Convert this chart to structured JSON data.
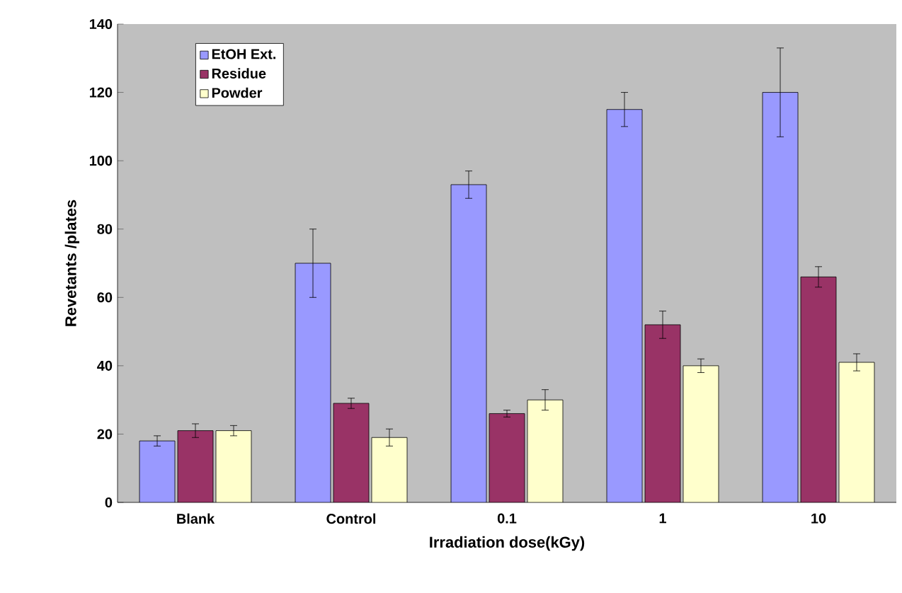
{
  "chart_data": {
    "type": "bar",
    "xlabel": "Irradiation dose(kGy)",
    "ylabel": "Revetants /plates",
    "categories": [
      "Blank",
      "Control",
      "0.1",
      "1",
      "10"
    ],
    "series": [
      {
        "name": "EtOH Ext.",
        "color": "#9999ff",
        "values": [
          18,
          70,
          93,
          115,
          120
        ],
        "errors": [
          1.5,
          10,
          4,
          5,
          13
        ]
      },
      {
        "name": "Residue",
        "color": "#993366",
        "values": [
          21,
          29,
          26,
          52,
          66
        ],
        "errors": [
          2,
          1.5,
          1,
          4,
          3
        ]
      },
      {
        "name": "Powder",
        "color": "#ffffcc",
        "values": [
          21,
          19,
          30,
          40,
          41
        ],
        "errors": [
          1.5,
          2.5,
          3,
          2,
          2.5
        ]
      }
    ],
    "ylim": [
      0,
      140
    ],
    "yticks": [
      0,
      20,
      40,
      60,
      80,
      100,
      120,
      140
    ],
    "legend": "top left",
    "grid": false
  }
}
